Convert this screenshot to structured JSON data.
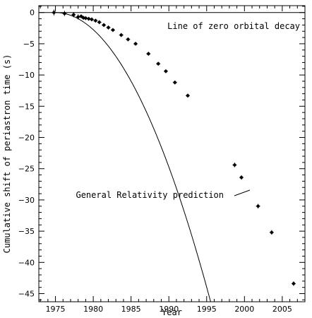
{
  "chart_data": {
    "type": "scatter",
    "xlabel": "Year",
    "ylabel": "Cumulative shift of periastron time (s)",
    "xlim": [
      1972.8,
      2008.0
    ],
    "ylim": [
      -46.3,
      1.1
    ],
    "x_ticks": [
      1975,
      1980,
      1985,
      1990,
      1995,
      2000,
      2005
    ],
    "y_ticks": [
      0,
      -5,
      -10,
      -15,
      -20,
      -25,
      -30,
      -35,
      -40,
      -45
    ],
    "grid": false,
    "zero_line": {
      "y": 0,
      "label": "Line of zero orbital decay"
    },
    "curve": {
      "label": "General Relativity prediction",
      "epoch": 1975.0,
      "quadratic_coefficient": -0.1099
    },
    "series": [
      {
        "points": [
          {
            "x": 1974.8,
            "y": 0.0,
            "err": 0.35
          },
          {
            "x": 1976.2,
            "y": -0.15,
            "err": 0.3
          },
          {
            "x": 1977.4,
            "y": -0.35,
            "err": 0.3
          },
          {
            "x": 1978.0,
            "y": -0.7,
            "err": 0.3
          },
          {
            "x": 1978.4,
            "y": -0.6,
            "err": 0.2
          },
          {
            "x": 1978.7,
            "y": -0.85,
            "err": 0.2
          },
          {
            "x": 1979.0,
            "y": -0.9,
            "err": 0.2
          },
          {
            "x": 1979.4,
            "y": -1.0,
            "err": 0.2
          },
          {
            "x": 1979.8,
            "y": -1.1,
            "err": 0.2
          },
          {
            "x": 1980.3,
            "y": -1.3,
            "err": 0.2
          },
          {
            "x": 1980.8,
            "y": -1.55,
            "err": 0.2
          },
          {
            "x": 1981.4,
            "y": -2.0,
            "err": 0.2
          },
          {
            "x": 1982.0,
            "y": -2.4,
            "err": 0.2
          },
          {
            "x": 1982.6,
            "y": -2.8,
            "err": 0.2
          },
          {
            "x": 1983.7,
            "y": -3.6,
            "err": 0.2
          },
          {
            "x": 1984.6,
            "y": -4.3,
            "err": 0.2
          },
          {
            "x": 1985.6,
            "y": -5.0,
            "err": 0.2
          },
          {
            "x": 1987.3,
            "y": -6.6,
            "err": 0.2
          },
          {
            "x": 1988.6,
            "y": -8.2,
            "err": 0.2
          },
          {
            "x": 1989.6,
            "y": -9.4,
            "err": 0.2
          },
          {
            "x": 1990.8,
            "y": -11.2,
            "err": 0.2
          },
          {
            "x": 1992.5,
            "y": -13.3,
            "err": 0.2
          },
          {
            "x": 1998.7,
            "y": -24.4,
            "err": 0.25
          },
          {
            "x": 1999.6,
            "y": -26.4,
            "err": 0.25
          },
          {
            "x": 2001.8,
            "y": -31.0,
            "err": 0.25
          },
          {
            "x": 2003.6,
            "y": -35.2,
            "err": 0.25
          },
          {
            "x": 2006.5,
            "y": -43.4,
            "err": 0.25
          }
        ]
      }
    ]
  }
}
